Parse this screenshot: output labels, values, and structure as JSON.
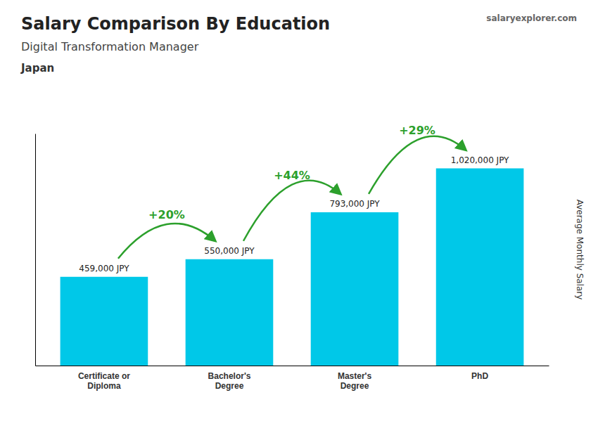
{
  "chart_data": {
    "type": "bar",
    "title": "Salary Comparison By Education",
    "subtitle": "Digital Transformation Manager",
    "country": "Japan",
    "watermark": "salaryexplorer.com",
    "ylabel": "Average Monthly Salary",
    "categories": [
      "Certificate or\nDiploma",
      "Bachelor's\nDegree",
      "Master's\nDegree",
      "PhD"
    ],
    "values": [
      459000,
      550000,
      793000,
      1020000
    ],
    "value_labels": [
      "459,000 JPY",
      "550,000 JPY",
      "793,000 JPY",
      "1,020,000 JPY"
    ],
    "data_labels": true,
    "annotations": [
      "+20%",
      "+44%",
      "+29%"
    ],
    "color": "#00c8e8",
    "ylim": [
      0,
      1200000
    ],
    "tick_labels": "x",
    "grid": false
  }
}
